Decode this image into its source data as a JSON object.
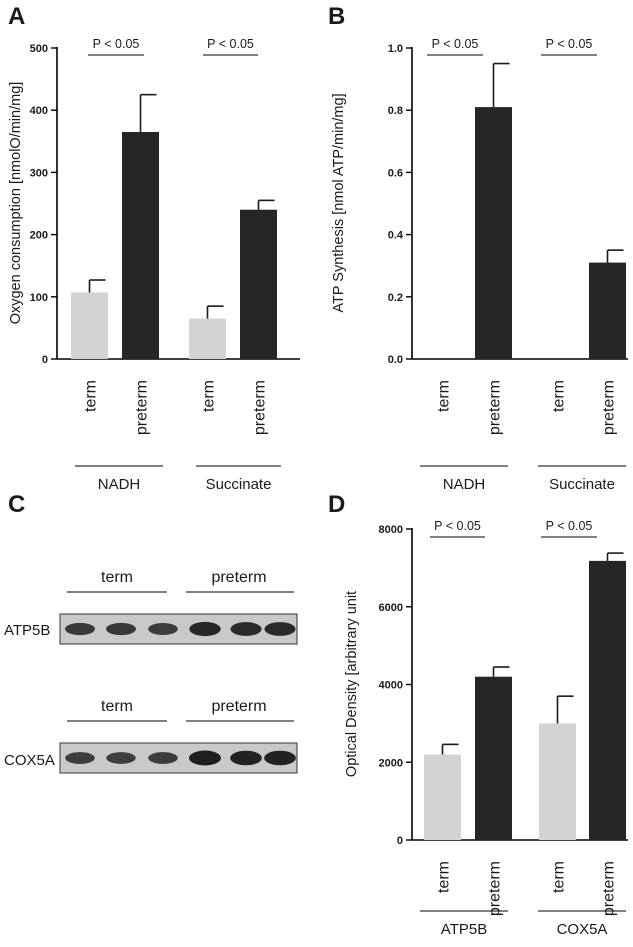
{
  "colors": {
    "term": "#d3d3d3",
    "preterm": "#262626",
    "blot_bg": "#c9c9c9",
    "band": "#1e1e1e"
  },
  "chart_data": [
    {
      "panel_label": "A",
      "type": "bar",
      "ylabel": "Oxygen consumption  [nmolO/min/mg]",
      "ylim": [
        0,
        500
      ],
      "yticks": [
        0,
        100,
        200,
        300,
        400,
        500
      ],
      "grid": false,
      "groups": [
        {
          "name": "NADH",
          "significance": "P < 0.05",
          "bars": [
            {
              "label": "term",
              "value": 107,
              "error": 20
            },
            {
              "label": "preterm",
              "value": 365,
              "error": 60
            }
          ]
        },
        {
          "name": "Succinate",
          "significance": "P < 0.05",
          "bars": [
            {
              "label": "term",
              "value": 65,
              "error": 20
            },
            {
              "label": "preterm",
              "value": 240,
              "error": 15
            }
          ]
        }
      ]
    },
    {
      "panel_label": "B",
      "type": "bar",
      "ylabel": "ATP Synthesis  [nmol ATP/min/mg]",
      "ylim": [
        0,
        1.0
      ],
      "yticks": [
        "0.0",
        "0.2",
        "0.4",
        "0.6",
        "0.8",
        "1.0"
      ],
      "grid": false,
      "groups": [
        {
          "name": "NADH",
          "significance": "P < 0.05",
          "bars": [
            {
              "label": "term",
              "value": 0,
              "error": 0
            },
            {
              "label": "preterm",
              "value": 0.81,
              "error": 0.14
            }
          ]
        },
        {
          "name": "Succinate",
          "significance": "P < 0.05",
          "bars": [
            {
              "label": "term",
              "value": 0,
              "error": 0
            },
            {
              "label": "preterm",
              "value": 0.31,
              "error": 0.04
            }
          ]
        }
      ]
    },
    {
      "panel_label": "D",
      "type": "bar",
      "ylabel": "Optical Density [arbitrary unit",
      "ylim": [
        0,
        8000
      ],
      "yticks": [
        0,
        2000,
        4000,
        6000,
        8000
      ],
      "grid": false,
      "groups": [
        {
          "name": "ATP5B",
          "significance": "P < 0.05",
          "bars": [
            {
              "label": "term",
              "value": 2200,
              "error": 260
            },
            {
              "label": "preterm",
              "value": 4200,
              "error": 250
            }
          ]
        },
        {
          "name": "COX5A",
          "significance": "P < 0.05",
          "bars": [
            {
              "label": "term",
              "value": 3000,
              "error": 700
            },
            {
              "label": "preterm",
              "value": 7180,
              "error": 200
            }
          ]
        }
      ]
    }
  ],
  "western_blot": {
    "panel_label": "C",
    "rows": [
      {
        "protein": "ATP5B",
        "group_labels": [
          "term",
          "preterm"
        ],
        "bands": [
          0.65,
          0.65,
          0.62,
          0.9,
          0.85,
          0.85
        ]
      },
      {
        "protein": "COX5A",
        "group_labels": [
          "term",
          "preterm"
        ],
        "bands": [
          0.6,
          0.58,
          0.6,
          1.0,
          0.95,
          0.95
        ]
      }
    ]
  }
}
